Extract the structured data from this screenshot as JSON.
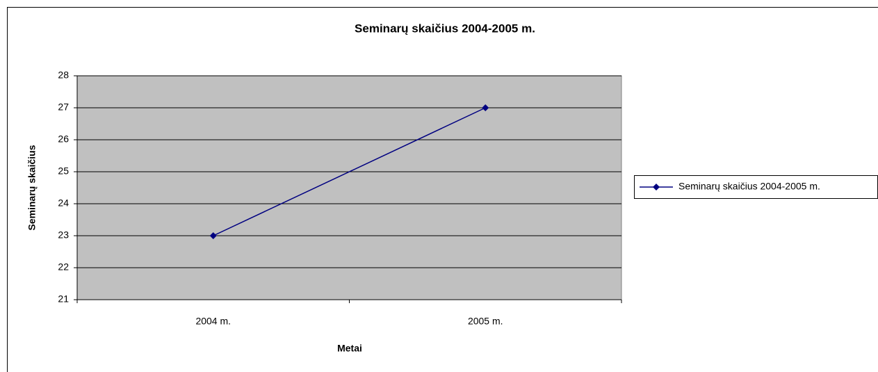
{
  "chart_data": {
    "type": "line",
    "title": "Seminarų skaičius 2004-2005 m.",
    "x_label": "Metai",
    "y_label": "Seminarų skaičius",
    "categories": [
      "2004 m.",
      "2005 m."
    ],
    "series": [
      {
        "name": "Seminarų skaičius 2004-2005 m.",
        "color": "#000080",
        "values": [
          23,
          27
        ]
      }
    ],
    "ylim": [
      21,
      28
    ],
    "yticks": [
      21,
      22,
      23,
      24,
      25,
      26,
      27,
      28
    ],
    "grid": true,
    "legend": "right"
  }
}
